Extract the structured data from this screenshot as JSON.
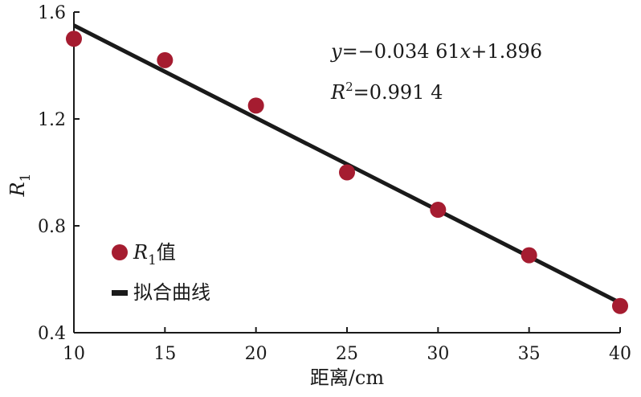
{
  "chart_data": {
    "type": "scatter",
    "xlabel": "距离/cm",
    "ylabel": {
      "main": "R",
      "sub": "1"
    },
    "xlim": [
      10,
      40
    ],
    "ylim": [
      0.4,
      1.6
    ],
    "x_ticks": [
      10,
      15,
      20,
      25,
      30,
      35,
      40
    ],
    "y_ticks": [
      0.4,
      0.8,
      1.2,
      1.6
    ],
    "x_tick_labels": [
      "10",
      "15",
      "20",
      "25",
      "30",
      "35",
      "40"
    ],
    "y_tick_labels": [
      "0.4",
      "0.8",
      "1.2",
      "1.6"
    ],
    "series": [
      {
        "kind": "points",
        "color": "#a51c30",
        "x": [
          10,
          15,
          20,
          25,
          30,
          35,
          40
        ],
        "y": [
          1.5,
          1.42,
          1.25,
          1.0,
          0.86,
          0.69,
          0.5
        ]
      },
      {
        "kind": "line",
        "color": "#1a1a1a",
        "slope": -0.03461,
        "intercept": 1.896
      }
    ],
    "annotations": {
      "equation": {
        "y": "y",
        "mid": "=−0.034 61",
        "x": "x",
        "tail": "+1.896"
      },
      "r2": {
        "r": "R",
        "sup": "2",
        "tail": "=0.991 4"
      }
    },
    "legend": {
      "placement": "bottom-left",
      "items": [
        {
          "main": "R",
          "sub": "1",
          "tail": "值"
        },
        {
          "label": "拟合曲线"
        }
      ]
    },
    "grid": false
  }
}
